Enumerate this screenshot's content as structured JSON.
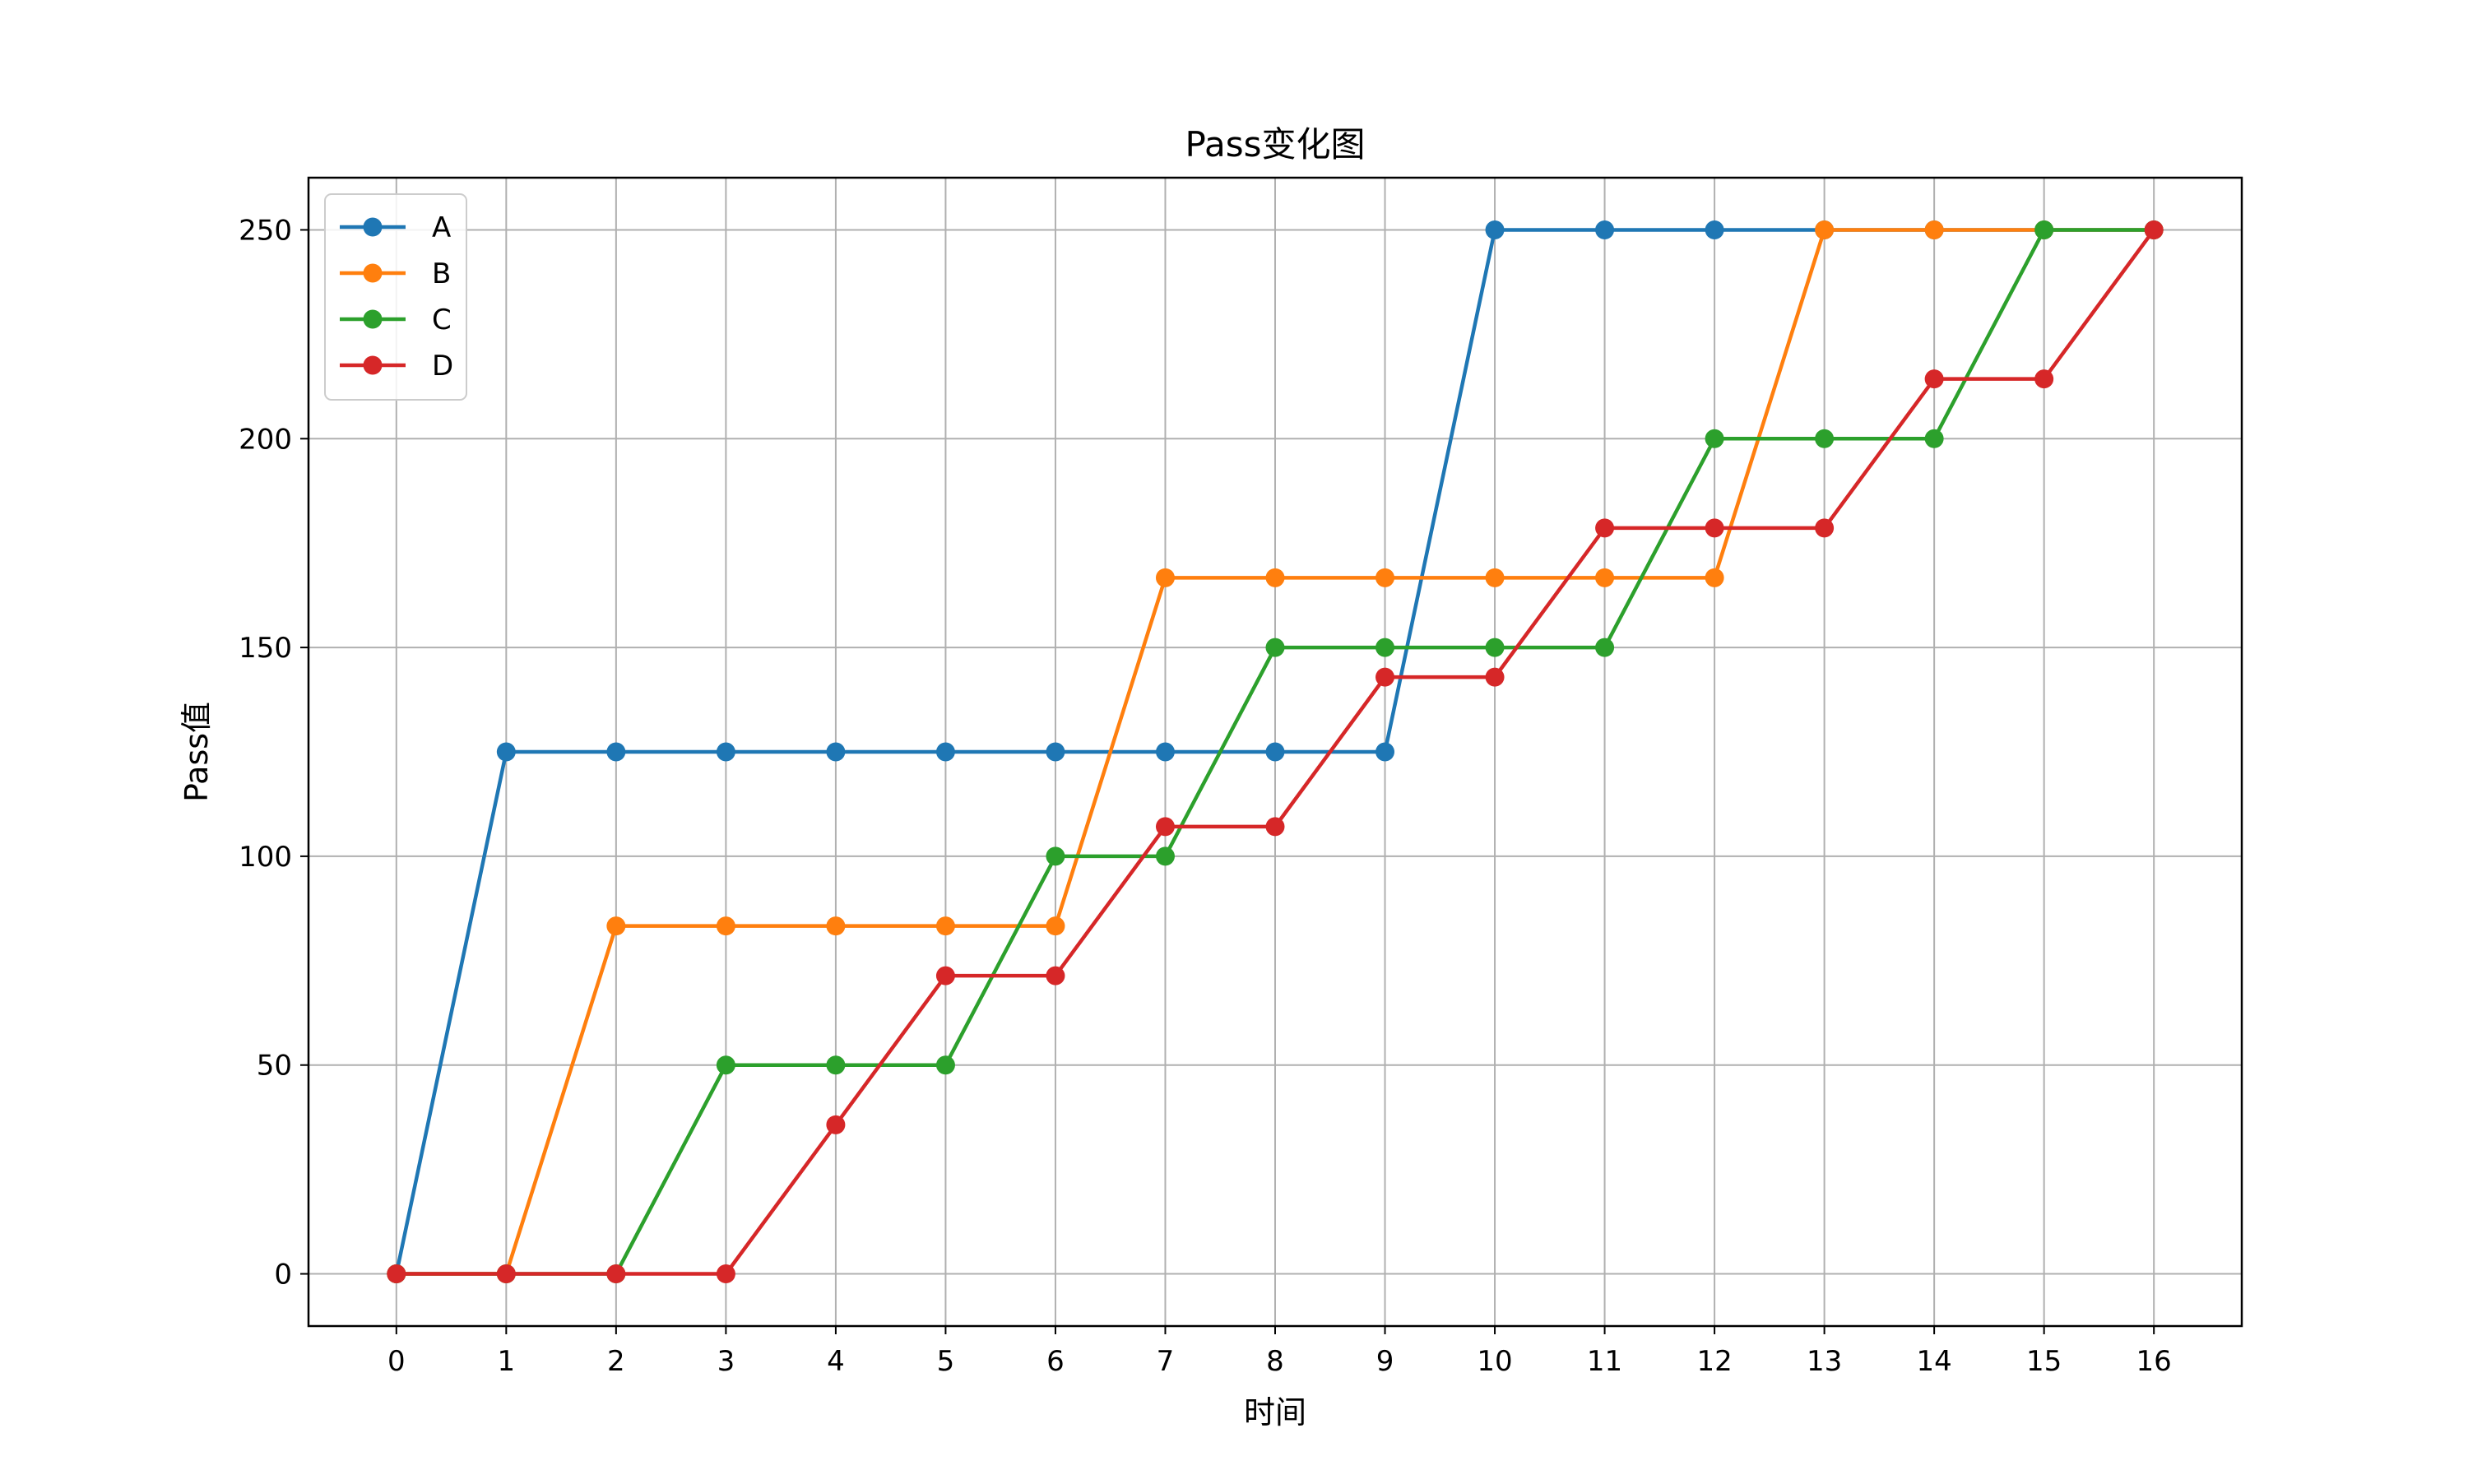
{
  "chart_data": {
    "type": "line",
    "title": "Pass变化图",
    "xlabel": "时间",
    "ylabel": "Pass值",
    "x": [
      0,
      1,
      2,
      3,
      4,
      5,
      6,
      7,
      8,
      9,
      10,
      11,
      12,
      13,
      14,
      15,
      16
    ],
    "xticks": [
      "0",
      "1",
      "2",
      "3",
      "4",
      "5",
      "6",
      "7",
      "8",
      "9",
      "10",
      "11",
      "12",
      "13",
      "14",
      "15",
      "16"
    ],
    "yticks": [
      "0",
      "50",
      "100",
      "150",
      "200",
      "250"
    ],
    "xlim": [
      -0.8,
      16.8
    ],
    "ylim": [
      -12.5,
      262.5
    ],
    "grid": true,
    "marker": "circle",
    "legend_position": "upper left",
    "series": [
      {
        "name": "A",
        "color": "#1f77b4",
        "values": [
          0,
          125,
          125,
          125,
          125,
          125,
          125,
          125,
          125,
          125,
          250,
          250,
          250,
          250,
          250,
          250,
          250
        ]
      },
      {
        "name": "B",
        "color": "#ff7f0e",
        "values": [
          0,
          0,
          83.3,
          83.3,
          83.3,
          83.3,
          83.3,
          166.7,
          166.7,
          166.7,
          166.7,
          166.7,
          166.7,
          250,
          250,
          250,
          250
        ]
      },
      {
        "name": "C",
        "color": "#2ca02c",
        "values": [
          0,
          0,
          0,
          50,
          50,
          50,
          100,
          100,
          150,
          150,
          150,
          150,
          200,
          200,
          200,
          250,
          250
        ]
      },
      {
        "name": "D",
        "color": "#d62728",
        "values": [
          0,
          0,
          0,
          0,
          35.7,
          71.4,
          71.4,
          107.1,
          107.1,
          142.9,
          142.9,
          178.6,
          178.6,
          178.6,
          214.3,
          214.3,
          250
        ]
      }
    ]
  }
}
